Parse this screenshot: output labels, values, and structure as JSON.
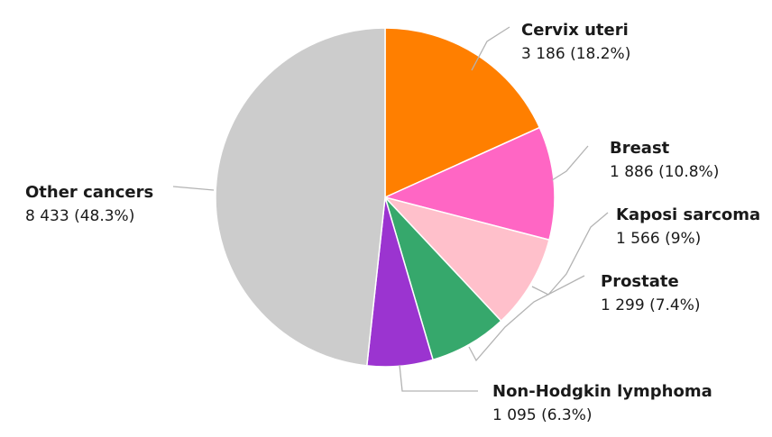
{
  "chart_data": {
    "type": "pie",
    "title": "",
    "slices": [
      {
        "label": "Cervix uteri",
        "value": 3186,
        "value_text": "3 186 (18.2%)",
        "percent": 18.2,
        "color": "#ff7f00"
      },
      {
        "label": "Breast",
        "value": 1886,
        "value_text": "1 886 (10.8%)",
        "percent": 10.8,
        "color": "#ff66c4"
      },
      {
        "label": "Kaposi sarcoma",
        "value": 1566,
        "value_text": "1 566 (9%)",
        "percent": 9.0,
        "color": "#ffc0cb"
      },
      {
        "label": "Prostate",
        "value": 1299,
        "value_text": "1 299 (7.4%)",
        "percent": 7.4,
        "color": "#36a86c"
      },
      {
        "label": "Non-Hodgkin lymphoma",
        "value": 1095,
        "value_text": "1 095 (6.3%)",
        "percent": 6.3,
        "color": "#9b34d0"
      },
      {
        "label": "Other cancers",
        "value": 8433,
        "value_text": "8 433 (48.3%)",
        "percent": 48.3,
        "color": "#cccccc"
      }
    ],
    "legend": "none",
    "labels": "outside-with-leader-lines",
    "start_angle": "12 o'clock",
    "direction": "clockwise"
  }
}
